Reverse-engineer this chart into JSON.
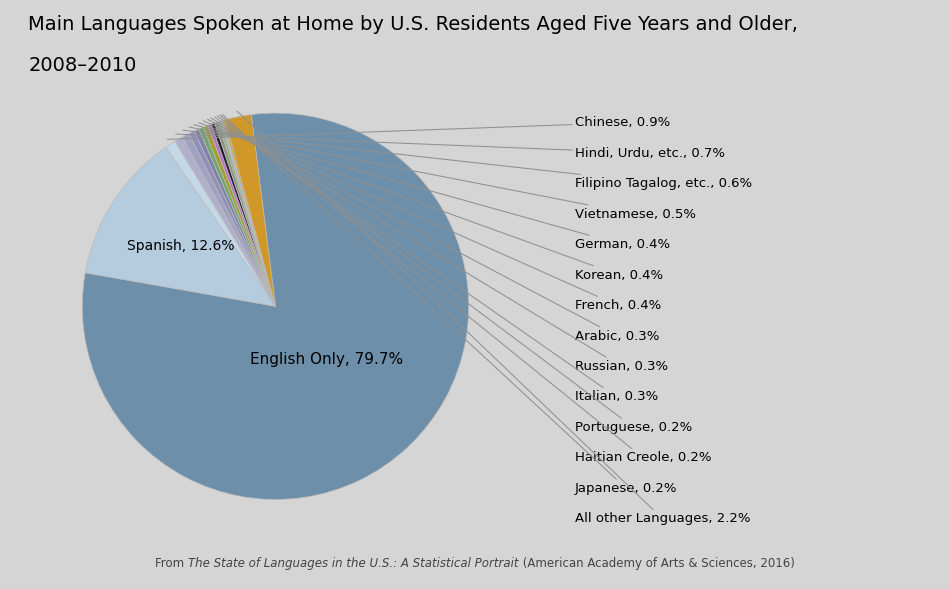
{
  "title_line1": "Main Languages Spoken at Home by U.S. Residents Aged Five Years and Older,",
  "title_line2": "2008–2010",
  "background_color": "#d5d5d5",
  "slices": [
    {
      "label": "English Only, 79.7%",
      "value": 79.7,
      "color": "#6d8faa",
      "inside": true
    },
    {
      "label": "Spanish, 12.6%",
      "value": 12.6,
      "color": "#b5ccdf",
      "inside": true
    },
    {
      "label": "Chinese, 0.9%",
      "value": 0.9,
      "color": "#c5d8e8"
    },
    {
      "label": "Hindi, Urdu, etc., 0.7%",
      "value": 0.7,
      "color": "#b0b0cc"
    },
    {
      "label": "Filipino Tagalog, etc., 0.6%",
      "value": 0.6,
      "color": "#a0a0c0"
    },
    {
      "label": "Vietnamese, 0.5%",
      "value": 0.5,
      "color": "#9090b8"
    },
    {
      "label": "German, 0.4%",
      "value": 0.4,
      "color": "#8080a8"
    },
    {
      "label": "Korean, 0.4%",
      "value": 0.4,
      "color": "#72a870"
    },
    {
      "label": "French, 0.4%",
      "value": 0.4,
      "color": "#a0a030"
    },
    {
      "label": "Arabic, 0.3%",
      "value": 0.3,
      "color": "#c070c0"
    },
    {
      "label": "Russian, 0.3%",
      "value": 0.3,
      "color": "#1a2535"
    },
    {
      "label": "Italian, 0.3%",
      "value": 0.3,
      "color": "#989080"
    },
    {
      "label": "Portuguese, 0.2%",
      "value": 0.2,
      "color": "#78b878"
    },
    {
      "label": "Haitian Creole, 0.2%",
      "value": 0.2,
      "color": "#b8b8d0"
    },
    {
      "label": "Japanese, 0.2%",
      "value": 0.2,
      "color": "#d0a848"
    },
    {
      "label": "All other Languages, 2.2%",
      "value": 2.2,
      "color": "#d09828"
    }
  ],
  "startangle": 97.2,
  "title_fontsize": 14,
  "inside_fontsize_en": 11,
  "inside_fontsize_sp": 10,
  "outside_fontsize": 9.5,
  "footnote_fontsize": 8.5,
  "line_color": "#909090"
}
